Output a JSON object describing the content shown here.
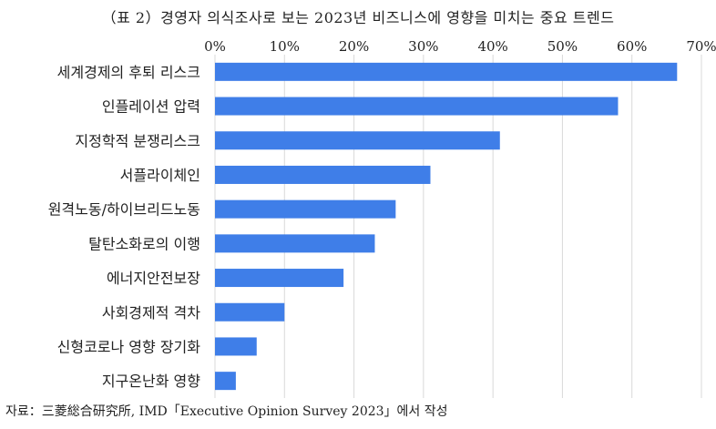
{
  "title": "（표 2）경영자 의식조사로 보는 2023년 비즈니스에 영향을 미치는 중요 트렌드",
  "source": "자료：三菱総合研究所, IMD「Executive Opinion Survey 2023」에서 작성",
  "colors": {
    "bar": "#3f7ee8",
    "grid": "#d9d9d9"
  },
  "chart_data": {
    "type": "bar",
    "orientation": "horizontal",
    "categories": [
      "세계경제의 후퇴 리스크",
      "인플레이션 압력",
      "지정학적 분쟁리스크",
      "서플라이체인",
      "원격노동/하이브리드노동",
      "탈탄소화로의 이행",
      "에너지안전보장",
      "사회경제적 격차",
      "신형코로나 영향 장기화",
      "지구온난화 영향"
    ],
    "values": [
      66.5,
      58,
      41,
      31,
      26,
      23,
      18.5,
      10,
      6,
      3
    ],
    "xlim": [
      0,
      70
    ],
    "tick_values": [
      0,
      10,
      20,
      30,
      40,
      50,
      60,
      70
    ],
    "tick_labels": [
      "0%",
      "10%",
      "20%",
      "30%",
      "40%",
      "50%",
      "60%",
      "70%"
    ],
    "axis_position": "top",
    "grid": true
  }
}
